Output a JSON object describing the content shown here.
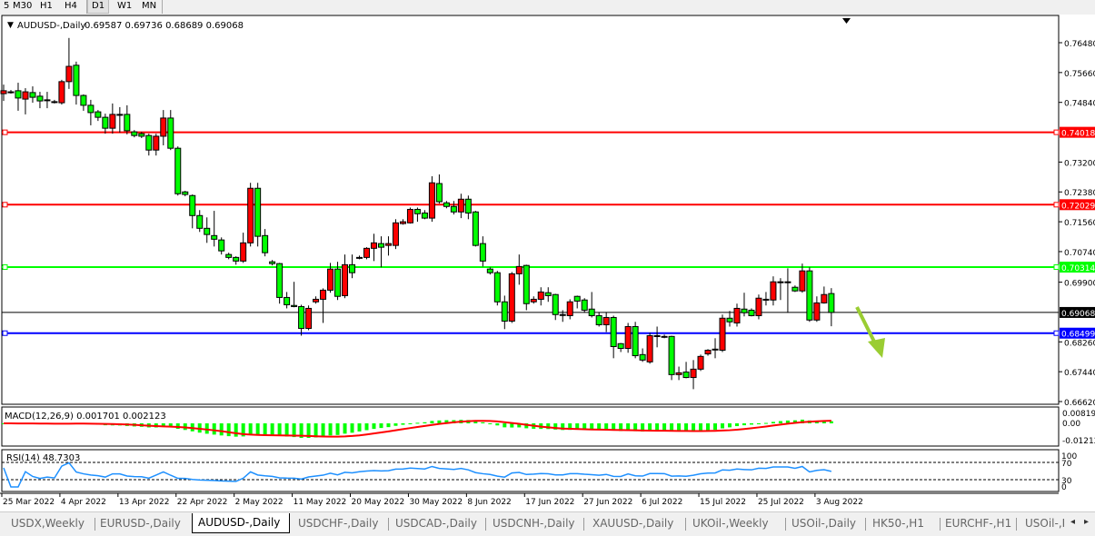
{
  "toolbar": {
    "timeframes": [
      {
        "label": "5"
      },
      {
        "label": "M30"
      },
      {
        "label": "H1"
      },
      {
        "label": "H4"
      },
      {
        "label": "D1",
        "active": true
      },
      {
        "label": "W1"
      },
      {
        "label": "MN"
      }
    ]
  },
  "chart": {
    "title": "AUDUSD-,Daily",
    "ohlc_readout": "0.69587 0.69736 0.68689 0.69068",
    "bull_color": "#ff0000",
    "bear_color": "#00ff00",
    "price_ticks": [
      "0.76480",
      "0.75660",
      "0.74840",
      "0.73200",
      "0.72380",
      "0.71560",
      "0.70740",
      "0.69900",
      "0.68260",
      "0.67440",
      "0.66620"
    ],
    "lines": [
      {
        "price": "0.74018",
        "color": "#ff0000"
      },
      {
        "price": "0.72029",
        "color": "#ff0000"
      },
      {
        "price": "0.70314",
        "color": "#00ff00"
      },
      {
        "price": "0.69068",
        "color": "#000000",
        "bid": true
      },
      {
        "price": "0.68499",
        "color": "#0000ff"
      }
    ],
    "annotation": {
      "type": "arrow-down-right",
      "color": "#9acd32"
    },
    "dates": [
      {
        "label": "25 Mar 2022",
        "index": 0
      },
      {
        "label": "4 Apr 2022",
        "index": 8
      },
      {
        "label": "13 Apr 2022",
        "index": 16
      },
      {
        "label": "22 Apr 2022",
        "index": 24
      },
      {
        "label": "2 May 2022",
        "index": 32
      },
      {
        "label": "11 May 2022",
        "index": 40
      },
      {
        "label": "20 May 2022",
        "index": 48
      },
      {
        "label": "30 May 2022",
        "index": 56
      },
      {
        "label": "8 Jun 2022",
        "index": 64
      },
      {
        "label": "17 Jun 2022",
        "index": 72
      },
      {
        "label": "27 Jun 2022",
        "index": 80
      },
      {
        "label": "6 Jul 2022",
        "index": 88
      },
      {
        "label": "15 Jul 2022",
        "index": 96
      },
      {
        "label": "25 Jul 2022",
        "index": 104
      },
      {
        "label": "3 Aug 2022",
        "index": 112
      }
    ],
    "candles_ohlc": [
      [
        0.7508,
        0.7533,
        0.7488,
        0.7516
      ],
      [
        0.7513,
        0.7518,
        0.7508,
        0.7513
      ],
      [
        0.7516,
        0.7538,
        0.7461,
        0.7496
      ],
      [
        0.7493,
        0.7523,
        0.7451,
        0.7513
      ],
      [
        0.7511,
        0.7528,
        0.7483,
        0.7498
      ],
      [
        0.7501,
        0.7513,
        0.7468,
        0.7488
      ],
      [
        0.7491,
        0.7513,
        0.7468,
        0.7491
      ],
      [
        0.7486,
        0.7491,
        0.7481,
        0.7486
      ],
      [
        0.7483,
        0.7546,
        0.7478,
        0.7541
      ],
      [
        0.7541,
        0.7661,
        0.7521,
        0.7583
      ],
      [
        0.7586,
        0.7596,
        0.7478,
        0.7503
      ],
      [
        0.7503,
        0.7506,
        0.7461,
        0.7476
      ],
      [
        0.7476,
        0.7491,
        0.7421,
        0.7456
      ],
      [
        0.7458,
        0.7463,
        0.7433,
        0.7443
      ],
      [
        0.7443,
        0.7453,
        0.7398,
        0.7413
      ],
      [
        0.7413,
        0.7481,
        0.7398,
        0.7451
      ],
      [
        0.7451,
        0.7471,
        0.7401,
        0.7451
      ],
      [
        0.7451,
        0.7476,
        0.7396,
        0.7406
      ],
      [
        0.7403,
        0.7408,
        0.7388,
        0.7393
      ],
      [
        0.7398,
        0.7403,
        0.7386,
        0.7391
      ],
      [
        0.7393,
        0.7398,
        0.7338,
        0.7353
      ],
      [
        0.7353,
        0.7398,
        0.7338,
        0.7391
      ],
      [
        0.7391,
        0.7463,
        0.7366,
        0.7441
      ],
      [
        0.7441,
        0.7463,
        0.7353,
        0.7358
      ],
      [
        0.7358,
        0.7363,
        0.7228,
        0.7233
      ],
      [
        0.7238,
        0.7241,
        0.7226,
        0.7231
      ],
      [
        0.7228,
        0.7231,
        0.7138,
        0.7173
      ],
      [
        0.7173,
        0.7188,
        0.7128,
        0.7138
      ],
      [
        0.7138,
        0.7168,
        0.7098,
        0.7121
      ],
      [
        0.7118,
        0.7186,
        0.7088,
        0.7108
      ],
      [
        0.7106,
        0.7113,
        0.7066,
        0.7076
      ],
      [
        0.7066,
        0.7071,
        0.7053,
        0.7058
      ],
      [
        0.7058,
        0.7061,
        0.7038,
        0.7048
      ],
      [
        0.7048,
        0.7126,
        0.7043,
        0.7098
      ],
      [
        0.7098,
        0.7263,
        0.7088,
        0.7248
      ],
      [
        0.7248,
        0.7263,
        0.7088,
        0.7116
      ],
      [
        0.7118,
        0.7136,
        0.7061,
        0.7071
      ],
      [
        0.7046,
        0.7051,
        0.7036,
        0.7041
      ],
      [
        0.7041,
        0.7043,
        0.6931,
        0.6948
      ],
      [
        0.6948,
        0.6963,
        0.6918,
        0.6928
      ],
      [
        0.6926,
        0.6991,
        0.6921,
        0.6923
      ],
      [
        0.6923,
        0.6928,
        0.6843,
        0.6863
      ],
      [
        0.6863,
        0.6926,
        0.6858,
        0.6918
      ],
      [
        0.6936,
        0.6951,
        0.6931,
        0.6943
      ],
      [
        0.6943,
        0.6973,
        0.6878,
        0.6968
      ],
      [
        0.6968,
        0.7043,
        0.6961,
        0.7026
      ],
      [
        0.7026,
        0.7046,
        0.6941,
        0.6951
      ],
      [
        0.6953,
        0.7066,
        0.6946,
        0.7038
      ],
      [
        0.7038,
        0.7066,
        0.7001,
        0.7016
      ],
      [
        0.7058,
        0.7063,
        0.7053,
        0.7058
      ],
      [
        0.7058,
        0.7086,
        0.7053,
        0.7083
      ],
      [
        0.7083,
        0.7123,
        0.7048,
        0.7098
      ],
      [
        0.7096,
        0.7116,
        0.7031,
        0.7086
      ],
      [
        0.7091,
        0.7116,
        0.7063,
        0.7096
      ],
      [
        0.7091,
        0.7163,
        0.7081,
        0.7153
      ],
      [
        0.7151,
        0.7163,
        0.7148,
        0.7156
      ],
      [
        0.7153,
        0.7195,
        0.7151,
        0.719
      ],
      [
        0.719,
        0.7195,
        0.7156,
        0.7178
      ],
      [
        0.718,
        0.7188,
        0.7163,
        0.7166
      ],
      [
        0.7166,
        0.7281,
        0.7156,
        0.7263
      ],
      [
        0.7261,
        0.7286,
        0.7206,
        0.7211
      ],
      [
        0.7208,
        0.7213,
        0.7193,
        0.7198
      ],
      [
        0.7198,
        0.7213,
        0.7176,
        0.7183
      ],
      [
        0.7183,
        0.7233,
        0.7166,
        0.7218
      ],
      [
        0.7218,
        0.7228,
        0.7163,
        0.718
      ],
      [
        0.7183,
        0.7186,
        0.7088,
        0.7091
      ],
      [
        0.7096,
        0.7116,
        0.7033,
        0.7048
      ],
      [
        0.7026,
        0.7031,
        0.7011,
        0.7016
      ],
      [
        0.7016,
        0.7021,
        0.6926,
        0.6936
      ],
      [
        0.6936,
        0.6953,
        0.6861,
        0.6883
      ],
      [
        0.6883,
        0.7018,
        0.6878,
        0.7013
      ],
      [
        0.7013,
        0.7066,
        0.6983,
        0.7033
      ],
      [
        0.7036,
        0.7038,
        0.6913,
        0.6931
      ],
      [
        0.6936,
        0.6951,
        0.6931,
        0.6943
      ],
      [
        0.6943,
        0.6976,
        0.6926,
        0.6963
      ],
      [
        0.6961,
        0.6976,
        0.6936,
        0.6953
      ],
      [
        0.6956,
        0.6958,
        0.6886,
        0.6901
      ],
      [
        0.6901,
        0.6913,
        0.6881,
        0.6901
      ],
      [
        0.6898,
        0.6943,
        0.6888,
        0.6936
      ],
      [
        0.6951,
        0.6953,
        0.6918,
        0.6938
      ],
      [
        0.6941,
        0.6946,
        0.6906,
        0.6913
      ],
      [
        0.6916,
        0.6963,
        0.6893,
        0.6898
      ],
      [
        0.6898,
        0.6908,
        0.6868,
        0.6873
      ],
      [
        0.6873,
        0.6908,
        0.6853,
        0.6893
      ],
      [
        0.6893,
        0.6898,
        0.6781,
        0.6813
      ],
      [
        0.6821,
        0.6823,
        0.6798,
        0.6808
      ],
      [
        0.6808,
        0.6878,
        0.6796,
        0.6868
      ],
      [
        0.6868,
        0.6881,
        0.6781,
        0.6788
      ],
      [
        0.6791,
        0.6808,
        0.6771,
        0.6776
      ],
      [
        0.6771,
        0.6851,
        0.6766,
        0.6843
      ],
      [
        0.6843,
        0.6868,
        0.6811,
        0.6843
      ],
      [
        0.6841,
        0.6846,
        0.6836,
        0.6841
      ],
      [
        0.6841,
        0.6843,
        0.6721,
        0.6736
      ],
      [
        0.6736,
        0.6758,
        0.6721,
        0.6741
      ],
      [
        0.6743,
        0.6771,
        0.6726,
        0.6728
      ],
      [
        0.6728,
        0.6776,
        0.6696,
        0.6751
      ],
      [
        0.6751,
        0.6791,
        0.6746,
        0.6786
      ],
      [
        0.6793,
        0.6806,
        0.6788,
        0.6803
      ],
      [
        0.6806,
        0.6836,
        0.6781,
        0.6806
      ],
      [
        0.6803,
        0.6901,
        0.6798,
        0.6891
      ],
      [
        0.6891,
        0.6911,
        0.6868,
        0.6881
      ],
      [
        0.6878,
        0.6931,
        0.6868,
        0.6918
      ],
      [
        0.6916,
        0.6961,
        0.6896,
        0.6906
      ],
      [
        0.6913,
        0.6918,
        0.6896,
        0.6898
      ],
      [
        0.6898,
        0.6956,
        0.6888,
        0.6946
      ],
      [
        0.6943,
        0.6963,
        0.6926,
        0.6941
      ],
      [
        0.6941,
        0.7006,
        0.6926,
        0.6991
      ],
      [
        0.6991,
        0.7001,
        0.6941,
        0.6991
      ],
      [
        0.6991,
        0.7028,
        0.6906,
        0.6991
      ],
      [
        0.6976,
        0.6981,
        0.6963,
        0.6966
      ],
      [
        0.6966,
        0.7041,
        0.6961,
        0.7021
      ],
      [
        0.7021,
        0.7031,
        0.6881,
        0.6886
      ],
      [
        0.6886,
        0.6951,
        0.6881,
        0.6933
      ],
      [
        0.6933,
        0.6978,
        0.6931,
        0.6956
      ],
      [
        0.69587,
        0.69736,
        0.68689,
        0.69068
      ]
    ]
  },
  "macd": {
    "label": "MACD(12,26,9) 0.001701 0.002123",
    "ticks": [
      "0.008197",
      "0.00",
      "-0.01212"
    ],
    "hist_color": "#00ff00",
    "signal_color": "#ff0000"
  },
  "rsi": {
    "label": "RSI(14) 48.7303",
    "ticks": [
      "100",
      "70",
      "30",
      "0"
    ],
    "color": "#1e90ff",
    "levels": [
      70,
      30
    ]
  },
  "tabs": [
    {
      "label": "USDX,Weekly"
    },
    {
      "label": "EURUSD-,Daily"
    },
    {
      "label": "AUDUSD-,Daily",
      "active": true
    },
    {
      "label": "USDCHF-,Daily"
    },
    {
      "label": "USDCAD-,Daily"
    },
    {
      "label": "USDCNH-,Daily"
    },
    {
      "label": "XAUUSD-,Daily"
    },
    {
      "label": "UKOil-,Weekly"
    },
    {
      "label": "USOil-,Daily"
    },
    {
      "label": "HK50-,H1"
    },
    {
      "label": "EURCHF-,H1"
    },
    {
      "label": "USOil-,I"
    }
  ],
  "tab_scroll": {
    "left": "◂",
    "right": "▸"
  }
}
